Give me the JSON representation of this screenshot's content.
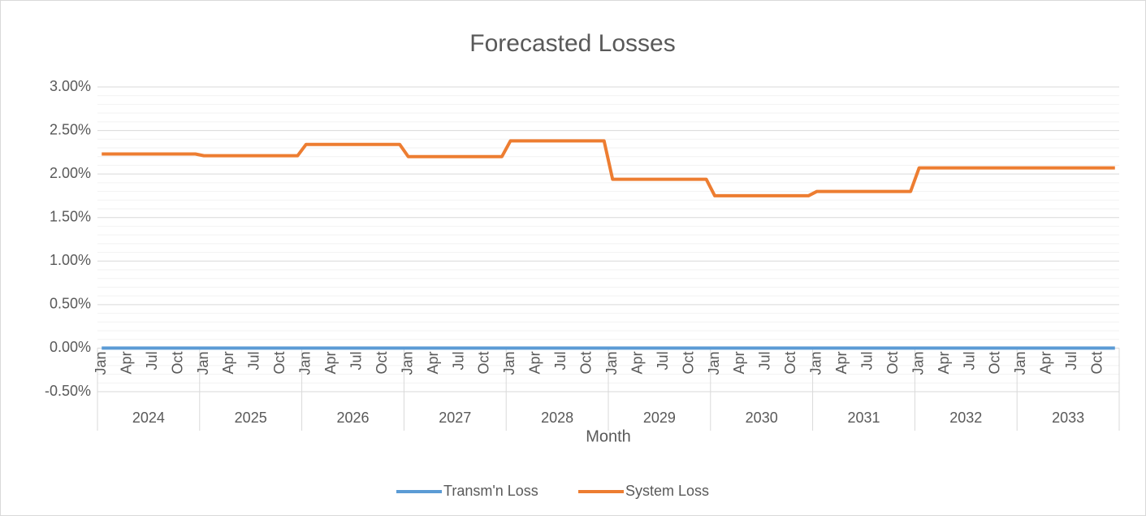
{
  "chart_data": {
    "type": "line",
    "title": "Forecasted Losses",
    "x_label": "Month",
    "categories": [
      "Jan",
      null,
      null,
      "Apr",
      null,
      null,
      "Jul",
      null,
      null,
      "Oct",
      null,
      null,
      "Jan",
      null,
      null,
      "Apr",
      null,
      null,
      "Jul",
      null,
      null,
      "Oct",
      null,
      null,
      "Jan",
      null,
      null,
      "Apr",
      null,
      null,
      "Jul",
      null,
      null,
      "Oct",
      null,
      null,
      "Jan",
      null,
      null,
      "Apr",
      null,
      null,
      "Jul",
      null,
      null,
      "Oct",
      null,
      null,
      "Jan",
      null,
      null,
      "Apr",
      null,
      null,
      "Jul",
      null,
      null,
      "Oct",
      null,
      null,
      "Jan",
      null,
      null,
      "Apr",
      null,
      null,
      "Jul",
      null,
      null,
      "Oct",
      null,
      null,
      "Jan",
      null,
      null,
      "Apr",
      null,
      null,
      "Jul",
      null,
      null,
      "Oct",
      null,
      null,
      "Jan",
      null,
      null,
      "Apr",
      null,
      null,
      "Jul",
      null,
      null,
      "Oct",
      null,
      null,
      "Jan",
      null,
      null,
      "Apr",
      null,
      null,
      "Jul",
      null,
      null,
      "Oct",
      null,
      null,
      "Jan",
      null,
      null,
      "Apr",
      null,
      null,
      "Jul",
      null,
      null,
      "Oct",
      null,
      null
    ],
    "year_groups": [
      "2024",
      "2025",
      "2026",
      "2027",
      "2028",
      "2029",
      "2030",
      "2031",
      "2032",
      "2033"
    ],
    "series": [
      {
        "name": "Transm'n Loss",
        "color": "#5b9bd5",
        "values": [
          0,
          0,
          0,
          0,
          0,
          0,
          0,
          0,
          0,
          0,
          0,
          0,
          0,
          0,
          0,
          0,
          0,
          0,
          0,
          0,
          0,
          0,
          0,
          0,
          0,
          0,
          0,
          0,
          0,
          0,
          0,
          0,
          0,
          0,
          0,
          0,
          0,
          0,
          0,
          0,
          0,
          0,
          0,
          0,
          0,
          0,
          0,
          0,
          0,
          0,
          0,
          0,
          0,
          0,
          0,
          0,
          0,
          0,
          0,
          0,
          0,
          0,
          0,
          0,
          0,
          0,
          0,
          0,
          0,
          0,
          0,
          0,
          0,
          0,
          0,
          0,
          0,
          0,
          0,
          0,
          0,
          0,
          0,
          0,
          0,
          0,
          0,
          0,
          0,
          0,
          0,
          0,
          0,
          0,
          0,
          0,
          0,
          0,
          0,
          0,
          0,
          0,
          0,
          0,
          0,
          0,
          0,
          0,
          0,
          0,
          0,
          0,
          0,
          0,
          0,
          0,
          0,
          0,
          0,
          0
        ]
      },
      {
        "name": "System Loss",
        "color": "#ed7d31",
        "values": [
          2.23,
          2.23,
          2.23,
          2.23,
          2.23,
          2.23,
          2.23,
          2.23,
          2.23,
          2.23,
          2.23,
          2.23,
          2.21,
          2.21,
          2.21,
          2.21,
          2.21,
          2.21,
          2.21,
          2.21,
          2.21,
          2.21,
          2.21,
          2.21,
          2.34,
          2.34,
          2.34,
          2.34,
          2.34,
          2.34,
          2.34,
          2.34,
          2.34,
          2.34,
          2.34,
          2.34,
          2.2,
          2.2,
          2.2,
          2.2,
          2.2,
          2.2,
          2.2,
          2.2,
          2.2,
          2.2,
          2.2,
          2.2,
          2.38,
          2.38,
          2.38,
          2.38,
          2.38,
          2.38,
          2.38,
          2.38,
          2.38,
          2.38,
          2.38,
          2.38,
          1.94,
          1.94,
          1.94,
          1.94,
          1.94,
          1.94,
          1.94,
          1.94,
          1.94,
          1.94,
          1.94,
          1.94,
          1.75,
          1.75,
          1.75,
          1.75,
          1.75,
          1.75,
          1.75,
          1.75,
          1.75,
          1.75,
          1.75,
          1.75,
          1.8,
          1.8,
          1.8,
          1.8,
          1.8,
          1.8,
          1.8,
          1.8,
          1.8,
          1.8,
          1.8,
          1.8,
          2.07,
          2.07,
          2.07,
          2.07,
          2.07,
          2.07,
          2.07,
          2.07,
          2.07,
          2.07,
          2.07,
          2.07,
          2.07,
          2.07,
          2.07,
          2.07,
          2.07,
          2.07,
          2.07,
          2.07,
          2.07,
          2.07,
          2.07,
          2.07
        ]
      }
    ],
    "ylim": [
      -0.5,
      3
    ],
    "yticks": [
      {
        "value": -0.5,
        "label": "-0.50%"
      },
      {
        "value": 0,
        "label": "0.00%"
      },
      {
        "value": 0.5,
        "label": "0.50%"
      },
      {
        "value": 1,
        "label": "1.00%"
      },
      {
        "value": 1.5,
        "label": "1.50%"
      },
      {
        "value": 2,
        "label": "2.00%"
      },
      {
        "value": 2.5,
        "label": "2.50%"
      },
      {
        "value": 3,
        "label": "3.00%"
      }
    ],
    "minor_yticks": [
      -0.4,
      -0.3,
      -0.2,
      -0.1,
      0.1,
      0.2,
      0.3,
      0.4,
      0.6,
      0.7,
      0.8,
      0.9,
      1.1,
      1.2,
      1.3,
      1.4,
      1.6,
      1.7,
      1.8,
      1.9,
      2.1,
      2.2,
      2.3,
      2.4,
      2.6,
      2.7,
      2.8,
      2.9
    ],
    "grid": true,
    "legend": "bottom"
  }
}
